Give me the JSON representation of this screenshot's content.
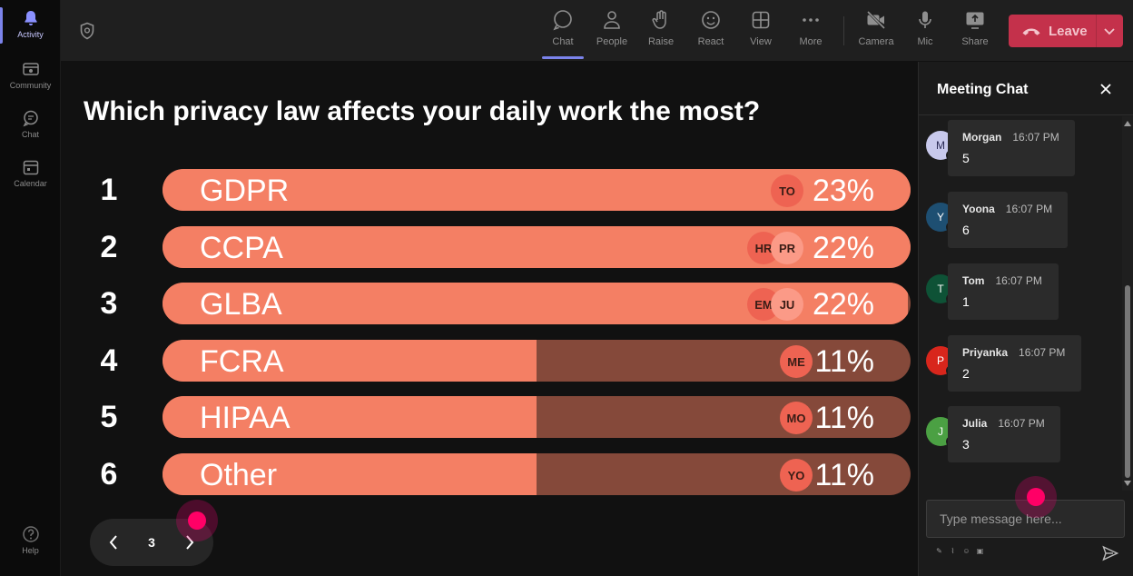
{
  "rail": {
    "items": [
      {
        "label": "Activity",
        "icon": "bell-icon",
        "active": true
      },
      {
        "label": "Community",
        "icon": "community-icon"
      },
      {
        "label": "Chat",
        "icon": "chat-icon"
      },
      {
        "label": "Calendar",
        "icon": "calendar-icon"
      }
    ],
    "help": {
      "label": "Help",
      "icon": "help-icon"
    }
  },
  "toolbar": {
    "chat": "Chat",
    "people": "People",
    "raise": "Raise",
    "react": "React",
    "view": "View",
    "more": "More",
    "camera": "Camera",
    "mic": "Mic",
    "share": "Share",
    "leave": "Leave"
  },
  "poll": {
    "question": "Which privacy law affects your daily work the most?",
    "page": "3",
    "options": [
      {
        "rank": "1",
        "label": "GDPR",
        "percent": "23%",
        "share": 1.0,
        "voters": [
          "TO"
        ]
      },
      {
        "rank": "2",
        "label": "CCPA",
        "percent": "22%",
        "share": 1.0,
        "voters": [
          "HR",
          "PR"
        ]
      },
      {
        "rank": "3",
        "label": "GLBA",
        "percent": "22%",
        "share": 0.996,
        "voters": [
          "EM",
          "JU"
        ]
      },
      {
        "rank": "4",
        "label": "FCRA",
        "percent": "11%",
        "share": 0.5,
        "voters": [
          "ME"
        ]
      },
      {
        "rank": "5",
        "label": "HIPAA",
        "percent": "11%",
        "share": 0.5,
        "voters": [
          "MO"
        ]
      },
      {
        "rank": "6",
        "label": "Other",
        "percent": "11%",
        "share": 0.5,
        "voters": [
          "YO"
        ]
      }
    ]
  },
  "chat": {
    "title": "Meeting Chat",
    "placeholder": "Type message here...",
    "messages": [
      {
        "initial": "M",
        "name": "Morgan",
        "time": "16:07 PM",
        "text": "5",
        "color": "#c8c9ec",
        "initial_color": "#2b2b55"
      },
      {
        "initial": "Y",
        "name": "Yoona",
        "time": "16:07 PM",
        "text": "6",
        "color": "#1e4f72",
        "initial_color": "#ffffff"
      },
      {
        "initial": "T",
        "name": "Tom",
        "time": "16:07 PM",
        "text": "1",
        "color": "#0e5236",
        "initial_color": "#ffffff"
      },
      {
        "initial": "P",
        "name": "Priyanka",
        "time": "16:07 PM",
        "text": "2",
        "color": "#d8261c",
        "initial_color": "#ffffff"
      },
      {
        "initial": "J",
        "name": "Julia",
        "time": "16:07 PM",
        "text": "3",
        "color": "#4ba043",
        "initial_color": "#ffffff"
      }
    ]
  },
  "colors": {
    "bar_fill": "#f47f64",
    "bar_track": "#85493a",
    "leave": "#c4314b",
    "accent": "#7b83eb"
  }
}
